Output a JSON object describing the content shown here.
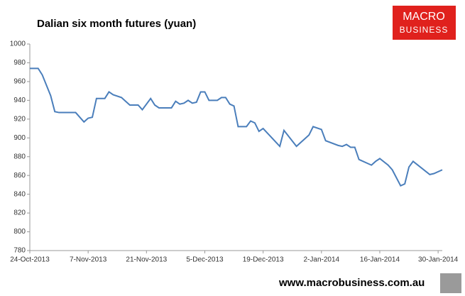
{
  "chart_data": {
    "type": "line",
    "title": "Dalian six month futures (yuan)",
    "logo": [
      "MACRO",
      "BUSINESS"
    ],
    "footer": "www.macrobusiness.com.au",
    "x": [
      "2013-10-24",
      "2013-10-26",
      "2013-10-27",
      "2013-10-29",
      "2013-10-30",
      "2013-10-31",
      "2013-11-04",
      "2013-11-06",
      "2013-11-07",
      "2013-11-08",
      "2013-11-09",
      "2013-11-11",
      "2013-11-12",
      "2013-11-13",
      "2013-11-15",
      "2013-11-17",
      "2013-11-19",
      "2013-11-20",
      "2013-11-22",
      "2013-11-23",
      "2013-11-24",
      "2013-11-27",
      "2013-11-28",
      "2013-11-29",
      "2013-11-30",
      "2013-12-01",
      "2013-12-02",
      "2013-12-03",
      "2013-12-04",
      "2013-12-05",
      "2013-12-06",
      "2013-12-08",
      "2013-12-09",
      "2013-12-10",
      "2013-12-11",
      "2013-12-12",
      "2013-12-13",
      "2013-12-15",
      "2013-12-16",
      "2013-12-17",
      "2013-12-18",
      "2013-12-19",
      "2013-12-23",
      "2013-12-24",
      "2013-12-27",
      "2013-12-30",
      "2013-12-31",
      "2014-01-02",
      "2014-01-03",
      "2014-01-06",
      "2014-01-07",
      "2014-01-08",
      "2014-01-09",
      "2014-01-10",
      "2014-01-11",
      "2014-01-13",
      "2014-01-14",
      "2014-01-15",
      "2014-01-16",
      "2014-01-18",
      "2014-01-19",
      "2014-01-21",
      "2014-01-22",
      "2014-01-23",
      "2014-01-24",
      "2014-01-28",
      "2014-01-29",
      "2014-01-31"
    ],
    "series": [
      {
        "name": "Dalian six month futures",
        "color": "#4a7ebb",
        "values": [
          974,
          974,
          967,
          945,
          928,
          927,
          927,
          917,
          921,
          922,
          942,
          942,
          949,
          946,
          943,
          935,
          935,
          930,
          942,
          935,
          932,
          932,
          939,
          936,
          937,
          940,
          937,
          938,
          949,
          949,
          940,
          940,
          943,
          943,
          936,
          934,
          912,
          912,
          918,
          916,
          907,
          910,
          891,
          908,
          891,
          903,
          912,
          909,
          897,
          892,
          891,
          893,
          890,
          890,
          877,
          873,
          871,
          875,
          878,
          871,
          866,
          849,
          851,
          869,
          875,
          861,
          862,
          866
        ]
      }
    ],
    "xlim": [
      "2013-10-24",
      "2014-01-31"
    ],
    "xticks": [
      {
        "value": "2013-10-24",
        "label": "24-Oct-2013"
      },
      {
        "value": "2013-11-07",
        "label": "7-Nov-2013"
      },
      {
        "value": "2013-11-21",
        "label": "21-Nov-2013"
      },
      {
        "value": "2013-12-05",
        "label": "5-Dec-2013"
      },
      {
        "value": "2013-12-19",
        "label": "19-Dec-2013"
      },
      {
        "value": "2014-01-02",
        "label": "2-Jan-2014"
      },
      {
        "value": "2014-01-16",
        "label": "16-Jan-2014"
      },
      {
        "value": "2014-01-30",
        "label": "30-Jan-2014"
      }
    ],
    "ylim": [
      780,
      1000
    ],
    "yticks": [
      780,
      800,
      820,
      840,
      860,
      880,
      900,
      920,
      940,
      960,
      980,
      1000
    ],
    "grid": false
  }
}
